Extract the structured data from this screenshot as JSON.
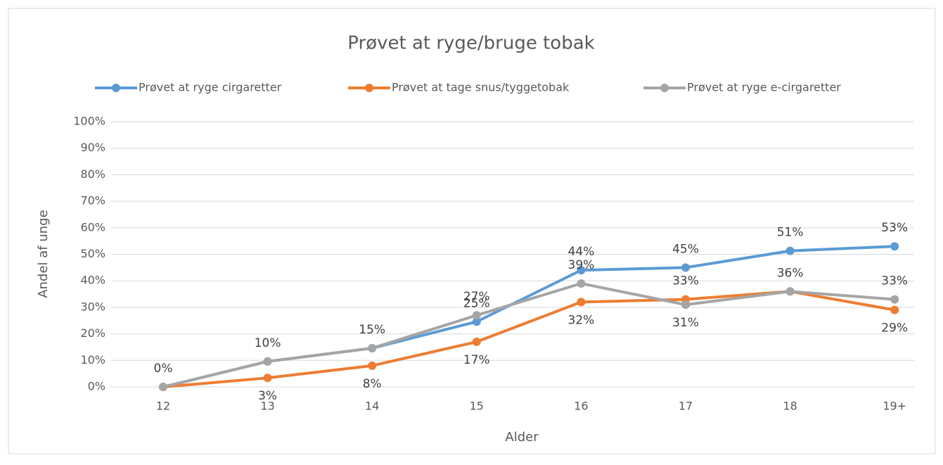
{
  "chart_data": {
    "type": "line",
    "title": "Prøvet at ryge/bruge tobak",
    "x_label": "Alder",
    "y_label": "Andel af unge",
    "categories": [
      "12",
      "13",
      "14",
      "15",
      "16",
      "17",
      "18",
      "19+"
    ],
    "series": [
      {
        "name": "Prøvet at ryge cirgaretter",
        "color": "#5b9bd5",
        "values": [
          0,
          9.6,
          14.6,
          24.6,
          44,
          45,
          51.3,
          53
        ],
        "value_labels": [
          "0%",
          "10%",
          "15%",
          "25%",
          "44%",
          "45%",
          "51%",
          "53%"
        ]
      },
      {
        "name": "Prøvet at tage snus/tyggetobak",
        "color": "#ed7d31",
        "values": [
          0,
          3.4,
          8,
          17,
          32,
          33,
          36,
          29
        ],
        "value_labels": [
          null,
          "3%",
          "8%",
          "17%",
          "32%",
          "33%",
          "36%",
          "29%"
        ]
      },
      {
        "name": "Prøvet at ryge e-cirgaretter",
        "color": "#a5a5a5",
        "values": [
          0,
          9.6,
          14.6,
          27,
          39,
          31,
          36,
          33
        ],
        "value_labels": [
          null,
          null,
          null,
          "27%",
          "39%",
          "31%",
          null,
          "33%"
        ]
      }
    ],
    "ylim": [
      0,
      100
    ],
    "yticks": [
      {
        "value": 0,
        "label": "0%"
      },
      {
        "value": 10,
        "label": "10%"
      },
      {
        "value": 20,
        "label": "20%"
      },
      {
        "value": 30,
        "label": "30%"
      },
      {
        "value": 40,
        "label": "40%"
      },
      {
        "value": 50,
        "label": "50%"
      },
      {
        "value": 60,
        "label": "60%"
      },
      {
        "value": 70,
        "label": "70%"
      },
      {
        "value": 80,
        "label": "80%"
      },
      {
        "value": 90,
        "label": "90%"
      },
      {
        "value": 100,
        "label": "100%"
      }
    ],
    "grid": true,
    "legend": "top"
  }
}
